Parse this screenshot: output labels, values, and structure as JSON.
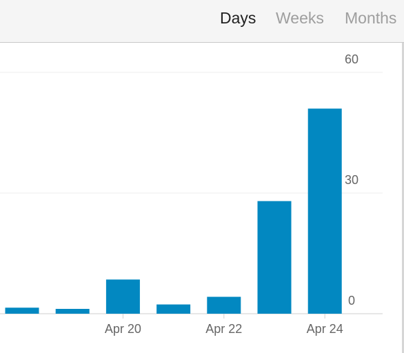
{
  "period_tabs": {
    "days": "Days",
    "weeks": "Weeks",
    "months": "Months",
    "selected": "days"
  },
  "colors": {
    "bar": "#0288c1",
    "grid": "#ececec",
    "axis_text": "#666666",
    "selected_tab": "#212121",
    "unselected_tab": "#9e9e9e"
  },
  "chart_data": {
    "type": "bar",
    "categories": [
      "Apr 18",
      "Apr 19",
      "Apr 20",
      "Apr 21",
      "Apr 22",
      "Apr 23",
      "Apr 24"
    ],
    "values": [
      1.5,
      1.2,
      8.5,
      2.3,
      4.2,
      28,
      51
    ],
    "x_tick_labels": [
      {
        "index": 2,
        "label": "Apr 20"
      },
      {
        "index": 4,
        "label": "Apr 22"
      },
      {
        "index": 6,
        "label": "Apr 24"
      }
    ],
    "y_ticks": [
      0,
      30,
      60
    ],
    "ylim": [
      0,
      60
    ],
    "grid": true,
    "y_axis_side": "right"
  }
}
